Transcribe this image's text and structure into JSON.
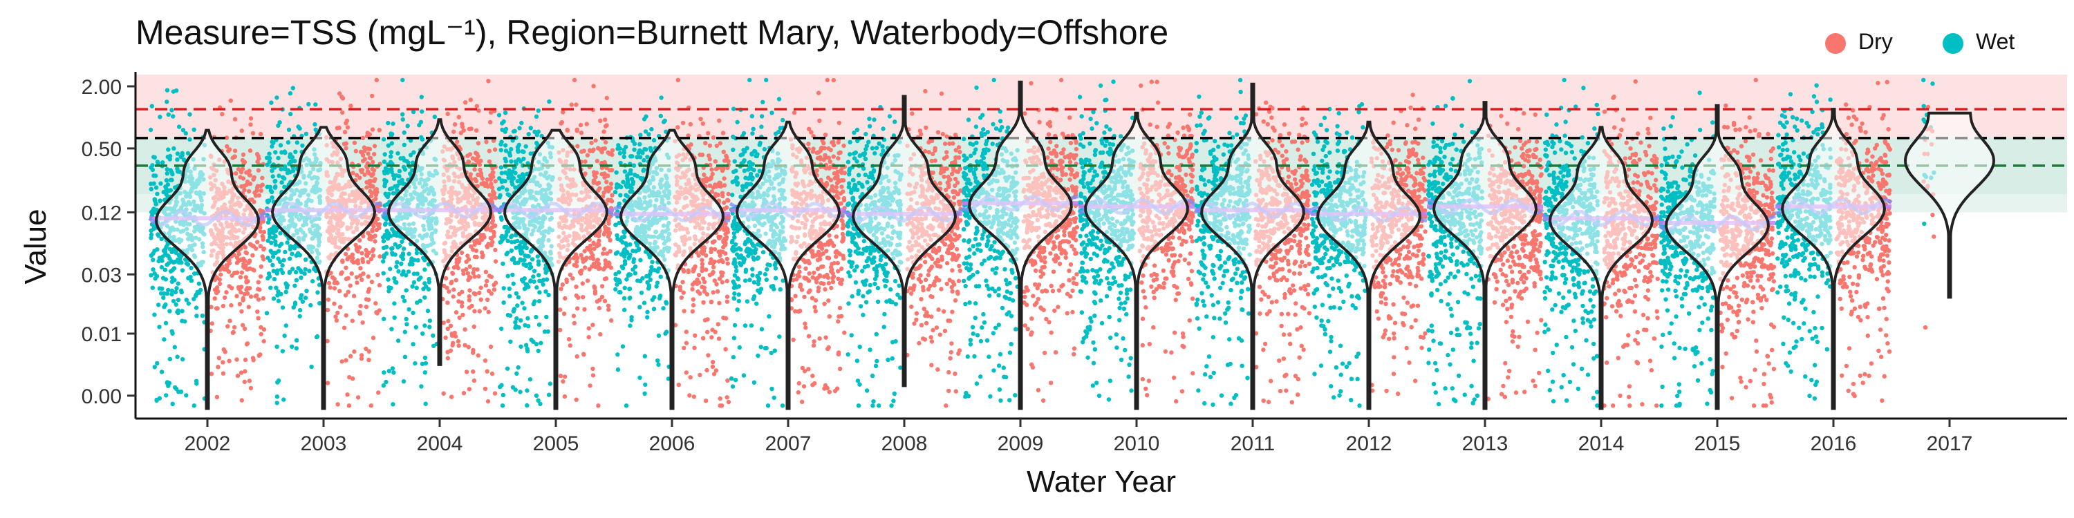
{
  "chart_data": {
    "type": "violin",
    "title": "Measure=TSS (mgL⁻¹), Region=Burnett Mary, Waterbody=Offshore",
    "xlabel": "Water Year",
    "ylabel": "Value",
    "y_scale": "log",
    "y_ticks": [
      {
        "label": "0.00",
        "position": 0.002
      },
      {
        "label": "0.01",
        "position": 0.008
      },
      {
        "label": "0.03",
        "position": 0.03
      },
      {
        "label": "0.12",
        "position": 0.12
      },
      {
        "label": "0.50",
        "position": 0.5
      },
      {
        "label": "2.00",
        "position": 2.0
      }
    ],
    "categories": [
      "2002",
      "2003",
      "2004",
      "2005",
      "2006",
      "2007",
      "2008",
      "2009",
      "2010",
      "2011",
      "2012",
      "2013",
      "2014",
      "2015",
      "2016",
      "2017"
    ],
    "legend": {
      "position": "top-right",
      "entries": [
        {
          "name": "Dry",
          "color": "#F8766D"
        },
        {
          "name": "Wet",
          "color": "#00BFC4"
        }
      ]
    },
    "guideline_values": [
      {
        "value": 1.2,
        "color": "#e31a1c",
        "style": "dashed"
      },
      {
        "value": 0.63,
        "color": "#000000",
        "style": "dashed"
      },
      {
        "value": 0.34,
        "color": "#1b7a3a",
        "style": "dashed"
      }
    ],
    "bands": [
      {
        "from": 0.63,
        "to": 2.6,
        "color": "#f6a5a5"
      },
      {
        "from": 0.18,
        "to": 0.63,
        "color": "#9fd4c0"
      }
    ],
    "medians": [
      0.1,
      0.12,
      0.12,
      0.12,
      0.11,
      0.12,
      0.11,
      0.14,
      0.13,
      0.12,
      0.11,
      0.13,
      0.1,
      0.09,
      0.13,
      0.38
    ],
    "violin_ranges": [
      {
        "min": 0.0015,
        "max": 0.75
      },
      {
        "min": 0.0015,
        "max": 0.8
      },
      {
        "min": 0.004,
        "max": 0.95
      },
      {
        "min": 0.0015,
        "max": 0.75
      },
      {
        "min": 0.0015,
        "max": 0.75
      },
      {
        "min": 0.0015,
        "max": 0.9
      },
      {
        "min": 0.0025,
        "max": 1.6
      },
      {
        "min": 0.0015,
        "max": 2.2
      },
      {
        "min": 0.0015,
        "max": 1.1
      },
      {
        "min": 0.0015,
        "max": 2.1
      },
      {
        "min": 0.0015,
        "max": 0.9
      },
      {
        "min": 0.0015,
        "max": 1.4
      },
      {
        "min": 0.0015,
        "max": 0.8
      },
      {
        "min": 0.0015,
        "max": 1.3
      },
      {
        "min": 0.0015,
        "max": 1.2
      },
      {
        "min": 0.018,
        "max": 1.1
      }
    ],
    "grid": false
  }
}
